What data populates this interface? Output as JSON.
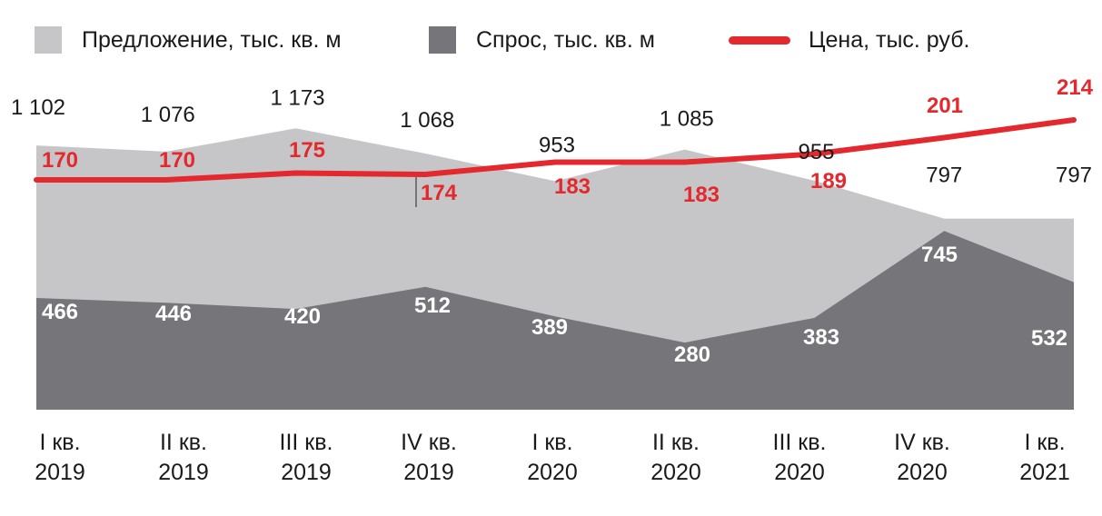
{
  "legend": {
    "supply_label": "Предложение, тыс. кв. м",
    "demand_label": "Спрос, тыс. кв. м",
    "price_label": "Цена, тыс. руб."
  },
  "colors": {
    "supply": "#c6c6c8",
    "demand": "#76767a",
    "price": "#e3282e",
    "supply_label": "#1a1a1a",
    "demand_label": "#ffffff"
  },
  "chart_data": {
    "type": "area",
    "categories": [
      [
        "I кв.",
        "2019"
      ],
      [
        "II кв.",
        "2019"
      ],
      [
        "III кв.",
        "2019"
      ],
      [
        "IV кв.",
        "2019"
      ],
      [
        "I кв.",
        "2020"
      ],
      [
        "II кв.",
        "2020"
      ],
      [
        "III кв.",
        "2020"
      ],
      [
        "IV кв.",
        "2020"
      ],
      [
        "I кв.",
        "2021"
      ]
    ],
    "series": [
      {
        "name": "Предложение, тыс. кв. м",
        "kind": "area",
        "values": [
          1102,
          1076,
          1173,
          1068,
          953,
          1085,
          955,
          797,
          797
        ],
        "labels": [
          "1 102",
          "1 076",
          "1 173",
          "1 068",
          "953",
          "1 085",
          "955",
          "797",
          "797"
        ]
      },
      {
        "name": "Спрос, тыс. кв. м",
        "kind": "area",
        "values": [
          466,
          446,
          420,
          512,
          389,
          280,
          383,
          745,
          532
        ],
        "labels": [
          "466",
          "446",
          "420",
          "512",
          "389",
          "280",
          "383",
          "745",
          "532"
        ]
      },
      {
        "name": "Цена, тыс. руб.",
        "kind": "line",
        "values": [
          170,
          170,
          175,
          174,
          183,
          183,
          189,
          201,
          214
        ],
        "labels": [
          "170",
          "170",
          "175",
          "174",
          "183",
          "183",
          "189",
          "201",
          "214"
        ]
      }
    ],
    "legend_position": "top",
    "grid": false
  }
}
